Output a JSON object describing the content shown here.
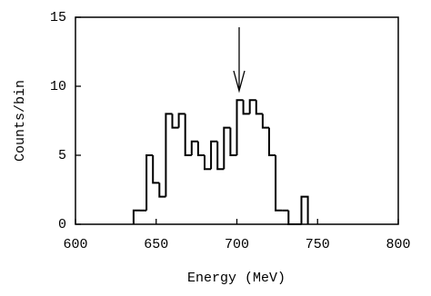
{
  "chart_data": {
    "type": "histogram",
    "x_label": "Energy (MeV)",
    "y_label": "Counts/bin",
    "bins": [
      636,
      640,
      644,
      648,
      652,
      656,
      660,
      664,
      668,
      672,
      676,
      680,
      684,
      688,
      692,
      696,
      700,
      704,
      708,
      712,
      716,
      720,
      724,
      728,
      732,
      736,
      740,
      744
    ],
    "counts": [
      1,
      1,
      5,
      3,
      2,
      8,
      7,
      8,
      5,
      6,
      5,
      4,
      6,
      4,
      7,
      5,
      9,
      8,
      9,
      8,
      7,
      5,
      1,
      1,
      0,
      0,
      2
    ],
    "color": "#000000",
    "xlim": [
      600,
      800
    ],
    "xticks": [
      600,
      650,
      700,
      750,
      800
    ],
    "ylim": [
      0,
      15
    ],
    "yticks": [
      0,
      5,
      10,
      15
    ]
  }
}
